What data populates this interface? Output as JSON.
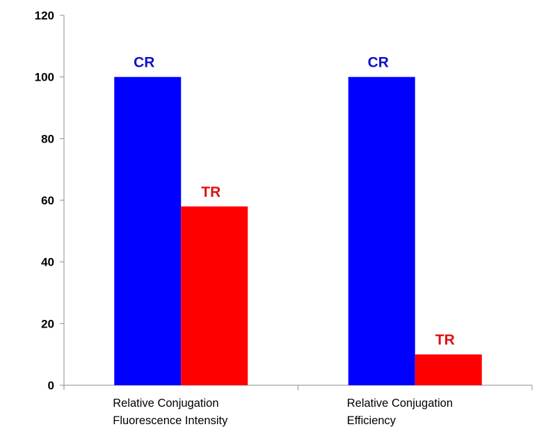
{
  "chart_data": {
    "type": "bar",
    "title": "",
    "xlabel": "",
    "ylabel": "",
    "ylim": [
      0,
      120
    ],
    "yticks": [
      0,
      20,
      40,
      60,
      80,
      100,
      120
    ],
    "categories": [
      [
        "Relative Conjugation",
        "Fluorescence Intensity"
      ],
      [
        "Relative Conjugation",
        "Efficiency"
      ]
    ],
    "series": [
      {
        "name": "CR",
        "color": "#0000ff",
        "label_color": "#1010cc",
        "values": [
          100,
          100
        ]
      },
      {
        "name": "TR",
        "color": "#ff0000",
        "label_color": "#e01010",
        "values": [
          58,
          10
        ]
      }
    ],
    "grid": false,
    "legend": "none"
  }
}
